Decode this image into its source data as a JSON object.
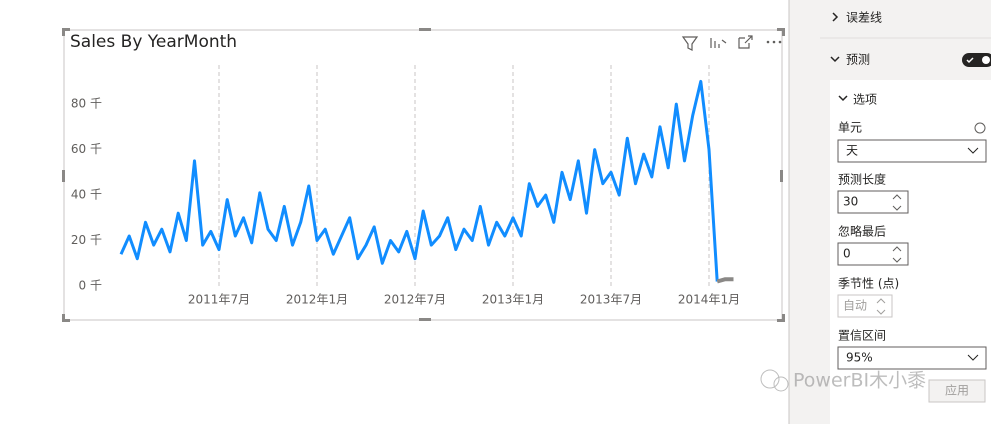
{
  "chart_data": {
    "type": "line",
    "title": "Sales By YearMonth",
    "categories": [
      null,
      null,
      null,
      null,
      null,
      null,
      null,
      null,
      null,
      null,
      null,
      null,
      "2011年7月",
      null,
      null,
      null,
      null,
      null,
      null,
      null,
      null,
      null,
      null,
      null,
      "2012年1月",
      null,
      null,
      null,
      null,
      null,
      null,
      null,
      null,
      null,
      null,
      null,
      "2012年7月",
      null,
      null,
      null,
      null,
      null,
      null,
      null,
      null,
      null,
      null,
      null,
      "2013年1月",
      null,
      null,
      null,
      null,
      null,
      null,
      null,
      null,
      null,
      null,
      null,
      "2013年7月",
      null,
      null,
      null,
      null,
      null,
      null,
      null,
      null,
      null,
      null,
      null,
      "2014年1月",
      null,
      null,
      null
    ],
    "series": [
      {
        "color": "#118dff",
        "values": [
          14,
          22,
          12,
          28,
          18,
          25,
          15,
          32,
          20,
          55,
          18,
          24,
          16,
          38,
          22,
          30,
          19,
          41,
          25,
          20,
          35,
          18,
          28,
          44,
          20,
          25,
          14,
          22,
          30,
          12,
          18,
          26,
          10,
          20,
          15,
          24,
          12,
          33,
          18,
          22,
          30,
          16,
          25,
          20,
          35,
          18,
          28,
          22,
          30,
          22,
          45,
          35,
          40,
          28,
          50,
          38,
          55,
          32,
          60,
          45,
          50,
          40,
          65,
          45,
          58,
          48,
          70,
          52,
          80,
          55,
          75,
          90,
          60,
          2,
          null,
          null
        ]
      },
      {
        "color": "#8a8886",
        "values": [
          null,
          null,
          null,
          null,
          null,
          null,
          null,
          null,
          null,
          null,
          null,
          null,
          null,
          null,
          null,
          null,
          null,
          null,
          null,
          null,
          null,
          null,
          null,
          null,
          null,
          null,
          null,
          null,
          null,
          null,
          null,
          null,
          null,
          null,
          null,
          null,
          null,
          null,
          null,
          null,
          null,
          null,
          null,
          null,
          null,
          null,
          null,
          null,
          null,
          null,
          null,
          null,
          null,
          null,
          null,
          null,
          null,
          null,
          null,
          null,
          null,
          null,
          null,
          null,
          null,
          null,
          null,
          null,
          null,
          null,
          null,
          null,
          null,
          2,
          3,
          3
        ]
      }
    ],
    "ylim": [
      0,
      95
    ],
    "yticks": [
      {
        "value": 0,
        "label": "0 千"
      },
      {
        "value": 20,
        "label": "20 千"
      },
      {
        "value": 40,
        "label": "40 千"
      },
      {
        "value": 60,
        "label": "60 千"
      },
      {
        "value": 80,
        "label": "80 千"
      }
    ],
    "grid": true
  },
  "format_pane": {
    "error_bars": "误差线",
    "forecast": "预测",
    "options": "选项",
    "unit_label": "单元",
    "unit_value": "天",
    "length_label": "预测长度",
    "length_value": "30",
    "ignore_label": "忽略最后",
    "ignore_value": "0",
    "season_label": "季节性 (点)",
    "season_value": "自动",
    "confidence_label": "置信区间",
    "confidence_value": "95%",
    "apply": "应用"
  },
  "watermark": "PowerBI木小黍"
}
